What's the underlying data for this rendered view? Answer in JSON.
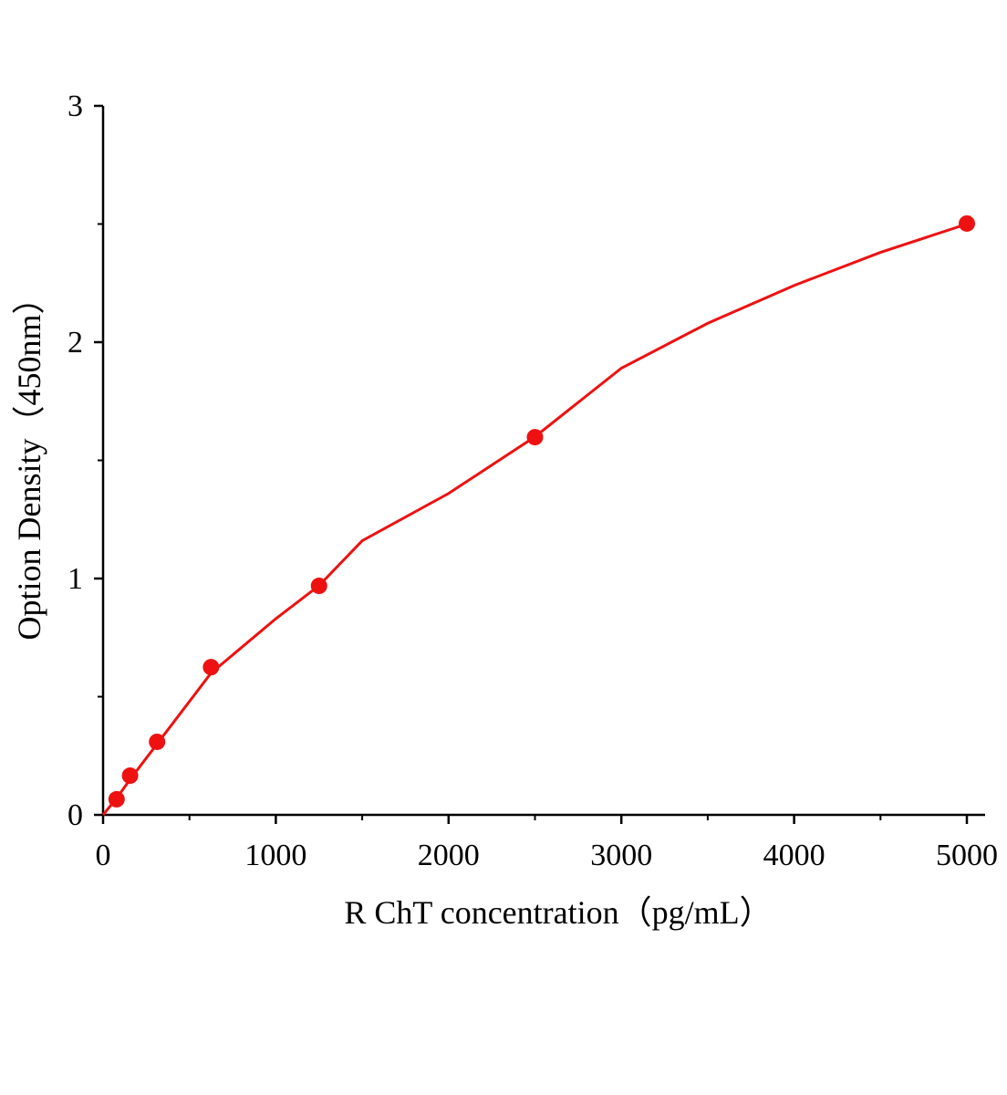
{
  "chart_data": {
    "type": "scatter",
    "x_label": "R ChT concentration（pg/mL）",
    "y_label": "Option Density（450nm）",
    "xlim": [
      0,
      5000
    ],
    "ylim": [
      0,
      3
    ],
    "xticks": [
      0,
      1000,
      2000,
      3000,
      4000,
      5000
    ],
    "yticks": [
      0,
      1,
      2,
      3
    ],
    "xticks_minor": [
      500,
      1500,
      2500,
      3500,
      4500
    ],
    "yticks_minor": [
      0.5,
      1.5,
      2.5
    ],
    "color": "#ee1111",
    "points": {
      "x": [
        78.125,
        156.25,
        312.5,
        625,
        1250,
        2500,
        5000
      ],
      "values": [
        0.066,
        0.166,
        0.309,
        0.625,
        0.969,
        1.598,
        2.502
      ]
    },
    "curve": {
      "x": [
        0,
        78.125,
        156.25,
        312.5,
        625,
        1000,
        1250,
        1500,
        2000,
        2500,
        3000,
        3500,
        4000,
        4500,
        5000
      ],
      "values": [
        0,
        0.07,
        0.15,
        0.3,
        0.6,
        0.83,
        0.97,
        1.16,
        1.36,
        1.6,
        1.89,
        2.08,
        2.24,
        2.38,
        2.5
      ]
    }
  }
}
